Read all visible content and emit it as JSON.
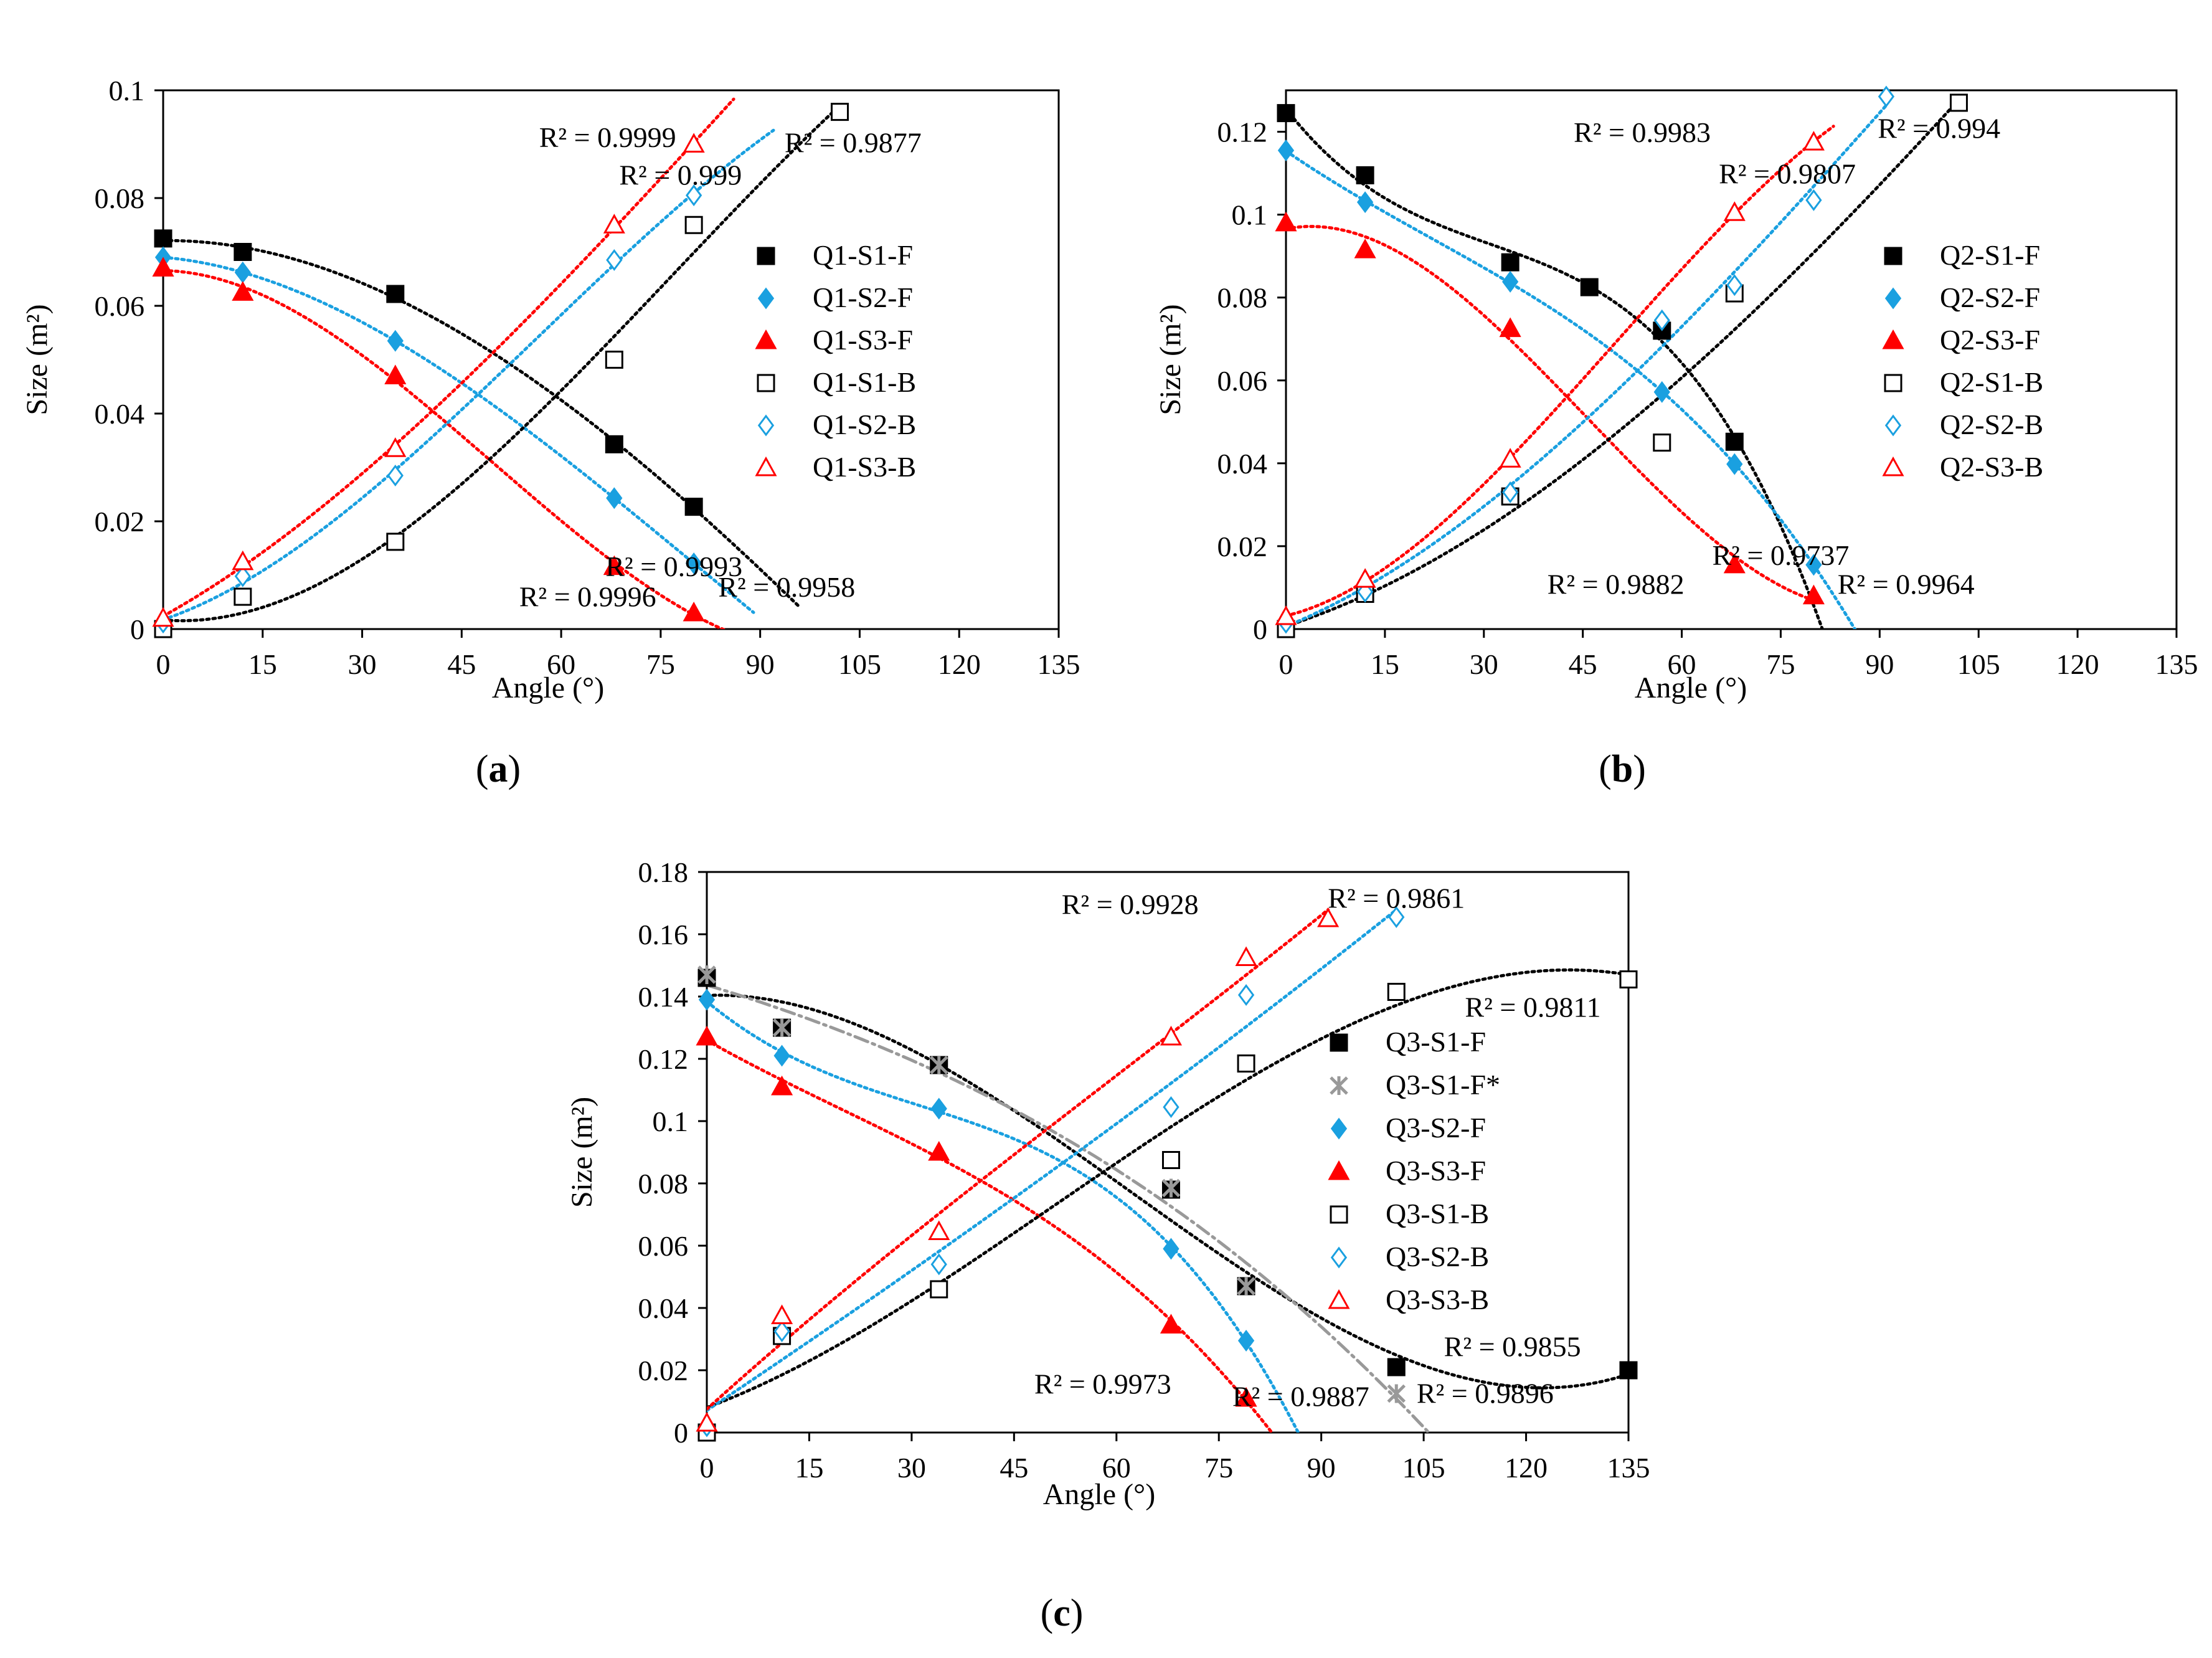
{
  "chart_data": [
    {
      "type": "scatter",
      "panel_label": "a",
      "xlabel": "Angle (°)",
      "ylabel": "Size (m²)",
      "xlim": [
        0,
        135
      ],
      "ylim": [
        0,
        0.1
      ],
      "xticks": [
        "0",
        "15",
        "30",
        "45",
        "60",
        "75",
        "90",
        "105",
        "120",
        "135"
      ],
      "yticks": [
        "0",
        "0.02",
        "0.04",
        "0.06",
        "0.08",
        "0.1"
      ],
      "legend_position": "right",
      "series": [
        {
          "name": "Q1-S1-F",
          "color": "#000000",
          "marker": "square-filled",
          "x": [
            0,
            12,
            35,
            68,
            80
          ],
          "y": [
            0.0725,
            0.07,
            0.0622,
            0.0343,
            0.0227
          ],
          "fit": {
            "type": "poly",
            "domain": [
              0,
              96
            ]
          }
        },
        {
          "name": "Q1-S2-F",
          "color": "#1aa0e0",
          "marker": "diamond-filled",
          "x": [
            0,
            12,
            35,
            68,
            80
          ],
          "y": [
            0.069,
            0.0662,
            0.0535,
            0.0243,
            0.0122
          ],
          "fit": {
            "type": "poly",
            "domain": [
              0,
              89
            ]
          }
        },
        {
          "name": "Q1-S3-F",
          "color": "#ff0000",
          "marker": "triangle-filled",
          "x": [
            0,
            12,
            35,
            68,
            80
          ],
          "y": [
            0.067,
            0.0625,
            0.047,
            0.0116,
            0.003
          ],
          "fit": {
            "type": "poly",
            "domain": [
              0,
              85
            ]
          }
        },
        {
          "name": "Q1-S1-B",
          "color": "#000000",
          "marker": "square-open",
          "x": [
            0,
            12,
            35,
            68,
            80,
            102
          ],
          "y": [
            0,
            0.006,
            0.0162,
            0.05,
            0.075,
            0.096
          ],
          "fit": {
            "type": "poly",
            "domain": [
              0,
              102
            ]
          }
        },
        {
          "name": "Q1-S2-B",
          "color": "#1aa0e0",
          "marker": "diamond-open",
          "x": [
            0,
            12,
            35,
            68,
            80
          ],
          "y": [
            0.0012,
            0.0098,
            0.0285,
            0.0685,
            0.0805
          ],
          "fit": {
            "type": "poly",
            "domain": [
              0,
              92
            ]
          }
        },
        {
          "name": "Q1-S3-B",
          "color": "#ff0000",
          "marker": "triangle-open",
          "x": [
            0,
            12,
            35,
            68,
            80
          ],
          "y": [
            0.002,
            0.0125,
            0.0335,
            0.075,
            0.09
          ],
          "fit": {
            "type": "poly",
            "domain": [
              0,
              86
            ]
          }
        }
      ],
      "annotations": [
        {
          "text": "R² = 0.9999",
          "x": 67,
          "y": 0.0895
        },
        {
          "text": "R² = 0.9877",
          "x": 104,
          "y": 0.0885
        },
        {
          "text": "R² = 0.999",
          "x": 78,
          "y": 0.0825
        },
        {
          "text": "R² = 0.9993",
          "x": 77,
          "y": 0.0098
        },
        {
          "text": "R² = 0.9996",
          "x": 64,
          "y": 0.0042
        },
        {
          "text": "R² = 0.9958",
          "x": 94,
          "y": 0.006
        }
      ]
    },
    {
      "type": "scatter",
      "panel_label": "b",
      "xlabel": "Angle (°)",
      "ylabel": "Size (m²)",
      "xlim": [
        0,
        135
      ],
      "ylim": [
        0,
        0.13
      ],
      "xticks": [
        "0",
        "15",
        "30",
        "45",
        "60",
        "75",
        "90",
        "105",
        "120",
        "135"
      ],
      "yticks": [
        "0",
        "0.02",
        "0.04",
        "0.06",
        "0.08",
        "0.1",
        "0.12"
      ],
      "legend_position": "right",
      "series": [
        {
          "name": "Q2-S1-F",
          "color": "#000000",
          "marker": "square-filled",
          "x": [
            0,
            12,
            34,
            46,
            57,
            68
          ],
          "y": [
            0.1245,
            0.1095,
            0.0885,
            0.0825,
            0.072,
            0.0452
          ],
          "fit": {
            "type": "poly",
            "domain": [
              0,
              97
            ]
          }
        },
        {
          "name": "Q2-S2-F",
          "color": "#1aa0e0",
          "marker": "diamond-filled",
          "x": [
            0,
            12,
            34,
            57,
            68,
            80
          ],
          "y": [
            0.1155,
            0.103,
            0.0838,
            0.0572,
            0.0398,
            0.0155
          ],
          "fit": {
            "type": "poly",
            "domain": [
              0,
              88
            ]
          }
        },
        {
          "name": "Q2-S3-F",
          "color": "#ff0000",
          "marker": "triangle-filled",
          "x": [
            0,
            12,
            34,
            68,
            80
          ],
          "y": [
            0.098,
            0.0915,
            0.0725,
            0.0155,
            0.008
          ],
          "fit": {
            "type": "poly",
            "domain": [
              0,
              81
            ]
          }
        },
        {
          "name": "Q2-S1-B",
          "color": "#000000",
          "marker": "square-open",
          "x": [
            0,
            12,
            34,
            57,
            68,
            102
          ],
          "y": [
            0,
            0.0085,
            0.032,
            0.045,
            0.081,
            0.127
          ],
          "fit": {
            "type": "poly",
            "domain": [
              0,
              102
            ]
          }
        },
        {
          "name": "Q2-S2-B",
          "color": "#1aa0e0",
          "marker": "diamond-open",
          "x": [
            0,
            12,
            34,
            57,
            68,
            80,
            91
          ],
          "y": [
            0.0015,
            0.009,
            0.033,
            0.0745,
            0.083,
            0.1035,
            0.1285
          ],
          "fit": {
            "type": "poly",
            "domain": [
              0,
              91
            ]
          }
        },
        {
          "name": "Q2-S3-B",
          "color": "#ff0000",
          "marker": "triangle-open",
          "x": [
            0,
            12,
            34,
            68,
            80
          ],
          "y": [
            0.003,
            0.012,
            0.041,
            0.1005,
            0.1175
          ],
          "fit": {
            "type": "poly",
            "domain": [
              0,
              83
            ]
          }
        }
      ],
      "annotations": [
        {
          "text": "R² = 0.9983",
          "x": 54,
          "y": 0.1175
        },
        {
          "text": "R² = 0.994",
          "x": 99,
          "y": 0.1185
        },
        {
          "text": "R² = 0.9807",
          "x": 76,
          "y": 0.1075
        },
        {
          "text": "R² = 0.9737",
          "x": 75,
          "y": 0.0155
        },
        {
          "text": "R² = 0.9882",
          "x": 50,
          "y": 0.0085
        },
        {
          "text": "R² = 0.9964",
          "x": 94,
          "y": 0.0085
        }
      ]
    },
    {
      "type": "scatter",
      "panel_label": "c",
      "xlabel": "Angle (°)",
      "ylabel": "Size (m²)",
      "xlim": [
        0,
        135
      ],
      "ylim": [
        0,
        0.18
      ],
      "xticks": [
        "0",
        "15",
        "30",
        "45",
        "60",
        "75",
        "90",
        "105",
        "120",
        "135"
      ],
      "yticks": [
        "0",
        "0.02",
        "0.04",
        "0.06",
        "0.08",
        "0.1",
        "0.12",
        "0.14",
        "0.16",
        "0.18"
      ],
      "legend_position": "right",
      "series": [
        {
          "name": "Q3-S1-F",
          "color": "#000000",
          "marker": "square-filled",
          "x": [
            0,
            11,
            34,
            68,
            79,
            101,
            135
          ],
          "y": [
            0.146,
            0.13,
            0.118,
            0.078,
            0.047,
            0.021,
            0.02
          ],
          "fit": {
            "type": "poly",
            "domain": [
              0,
              135
            ]
          }
        },
        {
          "name": "Q3-S1-F*",
          "color": "#999999",
          "marker": "star",
          "x": [
            0,
            11,
            34,
            68,
            79,
            101
          ],
          "y": [
            0.147,
            0.13,
            0.118,
            0.0785,
            0.047,
            0.0125
          ],
          "fit": {
            "type": "poly-dashdot",
            "domain": [
              0,
              106
            ]
          }
        },
        {
          "name": "Q3-S2-F",
          "color": "#1aa0e0",
          "marker": "diamond-filled",
          "x": [
            0,
            11,
            34,
            68,
            79
          ],
          "y": [
            0.139,
            0.121,
            0.104,
            0.059,
            0.0295
          ],
          "fit": {
            "type": "poly",
            "domain": [
              0,
              95
            ]
          }
        },
        {
          "name": "Q3-S3-F",
          "color": "#ff0000",
          "marker": "triangle-filled",
          "x": [
            0,
            11,
            34,
            68,
            79
          ],
          "y": [
            0.127,
            0.111,
            0.09,
            0.0345,
            0.011
          ],
          "fit": {
            "type": "poly",
            "domain": [
              0,
              84
            ]
          }
        },
        {
          "name": "Q3-S1-B",
          "color": "#000000",
          "marker": "square-open",
          "x": [
            0,
            11,
            34,
            68,
            79,
            101,
            135
          ],
          "y": [
            0,
            0.031,
            0.046,
            0.0875,
            0.1185,
            0.1415,
            0.1455
          ],
          "fit": {
            "type": "poly",
            "domain": [
              0,
              135
            ]
          }
        },
        {
          "name": "Q3-S2-B",
          "color": "#1aa0e0",
          "marker": "diamond-open",
          "x": [
            0,
            11,
            34,
            68,
            79,
            101
          ],
          "y": [
            0.002,
            0.0325,
            0.054,
            0.1045,
            0.1405,
            0.1655
          ],
          "fit": {
            "type": "poly",
            "domain": [
              0,
              101
            ]
          }
        },
        {
          "name": "Q3-S3-B",
          "color": "#ff0000",
          "marker": "triangle-open",
          "x": [
            0,
            11,
            34,
            68,
            79,
            91
          ],
          "y": [
            0.003,
            0.0375,
            0.0645,
            0.127,
            0.1525,
            0.165
          ],
          "fit": {
            "type": "poly",
            "domain": [
              0,
              91
            ]
          }
        }
      ],
      "annotations": [
        {
          "text": "R² = 0.9928",
          "x": 62,
          "y": 0.1665
        },
        {
          "text": "R² = 0.9861",
          "x": 101,
          "y": 0.1685
        },
        {
          "text": "R² = 0.9811",
          "x": 121,
          "y": 0.1335
        },
        {
          "text": "R² = 0.9855",
          "x": 118,
          "y": 0.0245
        },
        {
          "text": "R² = 0.9973",
          "x": 58,
          "y": 0.0125
        },
        {
          "text": "R² = 0.9887",
          "x": 87,
          "y": 0.0085
        },
        {
          "text": "R² = 0.9896",
          "x": 114,
          "y": 0.0095
        }
      ]
    }
  ]
}
